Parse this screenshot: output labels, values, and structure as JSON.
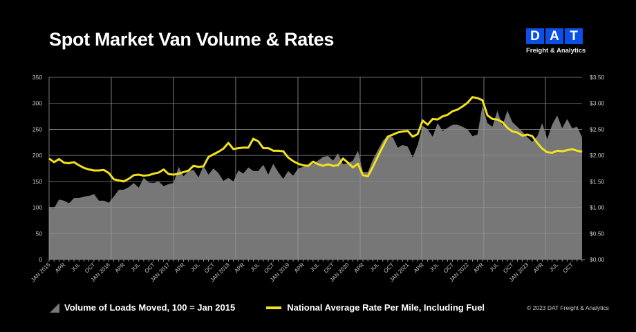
{
  "header": {
    "title": "Spot Market Van Volume & Rates"
  },
  "logo": {
    "letters": [
      "D",
      "A",
      "T"
    ],
    "subtitle": "Freight & Analytics",
    "color": "#0b4fe6"
  },
  "legend": {
    "volume": "Volume of Loads Moved, 100 = Jan 2015",
    "rate": "National Average Rate Per Mile, Including Fuel"
  },
  "copyright": "© 2023 DAT Freight & Analytics",
  "chart_data": {
    "type": "area+line",
    "title": "Spot Market Van Volume & Rates",
    "x_range": [
      "Jan 2015",
      "Dec 2023"
    ],
    "x_tick_labels": [
      "JAN 2015",
      "APR",
      "JUL",
      "OCT",
      "JAN 2016",
      "APR",
      "JUL",
      "OCT",
      "JAN 2017",
      "APR",
      "JUL",
      "OCT",
      "JAN 2018",
      "APR",
      "JUL",
      "OCT",
      "JAN 2019",
      "APR",
      "JUL",
      "OCT",
      "JAN 2020",
      "APR",
      "JUL",
      "OCT",
      "JAN 2021",
      "APR",
      "JUL",
      "OCT",
      "JAN 2022",
      "APR",
      "JUL",
      "OCT",
      "JAN 2023",
      "APR",
      "JUL",
      "OCT"
    ],
    "y_left": {
      "range": [
        0,
        350
      ],
      "ticks": [
        "0",
        "50",
        "100",
        "150",
        "200",
        "250",
        "300",
        "350"
      ]
    },
    "y_right": {
      "range": [
        0,
        3.5
      ],
      "ticks": [
        "$0.00",
        "$0.50",
        "$1.00",
        "$1.50",
        "$2.00",
        "$2.50",
        "$3.00",
        "$3.50"
      ]
    },
    "grid": true,
    "legend_position": "bottom",
    "colors": {
      "volume": "#777777",
      "rate": "#f2e21d"
    },
    "series": [
      {
        "name": "Volume of Loads Moved, 100 = Jan 2015",
        "type": "area",
        "axis": "left",
        "values": [
          100,
          99,
          115,
          113,
          108,
          118,
          118,
          121,
          122,
          126,
          113,
          113,
          109,
          121,
          134,
          134,
          139,
          147,
          138,
          157,
          148,
          147,
          150,
          141,
          145,
          147,
          178,
          160,
          170,
          172,
          158,
          180,
          163,
          175,
          166,
          151,
          157,
          150,
          171,
          165,
          177,
          170,
          170,
          182,
          163,
          184,
          168,
          155,
          170,
          161,
          175,
          178,
          181,
          184,
          190,
          197,
          199,
          190,
          204,
          183,
          185,
          190,
          209,
          168,
          168,
          192,
          210,
          228,
          238,
          235,
          215,
          220,
          217,
          196,
          220,
          257,
          250,
          236,
          262,
          247,
          253,
          259,
          259,
          255,
          250,
          237,
          240,
          296,
          262,
          255,
          286,
          257,
          286,
          264,
          255,
          246,
          235,
          226,
          237,
          262,
          231,
          259,
          277,
          252,
          270,
          252,
          255,
          235
        ]
      },
      {
        "name": "National Average Rate Per Mile, Including Fuel",
        "type": "line",
        "axis": "right",
        "values": [
          1.94,
          1.87,
          1.93,
          1.86,
          1.85,
          1.87,
          1.81,
          1.76,
          1.73,
          1.71,
          1.71,
          1.72,
          1.66,
          1.54,
          1.52,
          1.5,
          1.55,
          1.62,
          1.63,
          1.61,
          1.62,
          1.65,
          1.67,
          1.73,
          1.64,
          1.63,
          1.65,
          1.68,
          1.71,
          1.8,
          1.78,
          1.79,
          1.97,
          2.02,
          2.07,
          2.13,
          2.24,
          2.12,
          2.14,
          2.15,
          2.15,
          2.32,
          2.27,
          2.14,
          2.14,
          2.09,
          2.09,
          2.08,
          1.96,
          1.89,
          1.84,
          1.81,
          1.8,
          1.88,
          1.83,
          1.8,
          1.83,
          1.8,
          1.81,
          1.94,
          1.86,
          1.77,
          1.84,
          1.62,
          1.6,
          1.78,
          1.98,
          2.17,
          2.36,
          2.4,
          2.44,
          2.46,
          2.47,
          2.36,
          2.41,
          2.67,
          2.59,
          2.7,
          2.69,
          2.75,
          2.78,
          2.85,
          2.88,
          2.94,
          3.01,
          3.12,
          3.1,
          3.06,
          2.77,
          2.7,
          2.69,
          2.64,
          2.53,
          2.46,
          2.44,
          2.38,
          2.4,
          2.37,
          2.24,
          2.13,
          2.06,
          2.05,
          2.09,
          2.08,
          2.1,
          2.12,
          2.09,
          2.07
        ]
      }
    ]
  }
}
